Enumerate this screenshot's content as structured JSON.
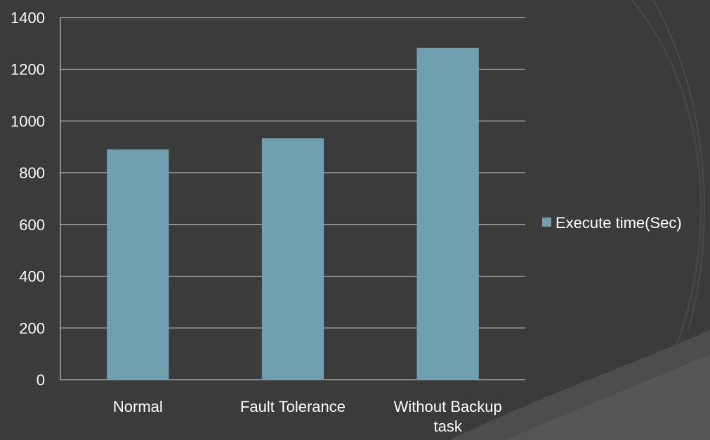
{
  "chart_data": {
    "type": "bar",
    "categories": [
      "Normal",
      "Fault Tolerance",
      "Without Backup task"
    ],
    "category_label_lines": [
      [
        "Normal"
      ],
      [
        "Fault Tolerance"
      ],
      [
        "Without Backup",
        "task"
      ]
    ],
    "series": [
      {
        "name": "Execute time(Sec)",
        "values": [
          890,
          933,
          1283
        ],
        "color": "#6fa0b0"
      }
    ],
    "ylim": [
      0,
      1400
    ],
    "yticks": [
      0,
      200,
      400,
      600,
      800,
      1000,
      1200,
      1400
    ],
    "grid": true,
    "legend_position": "right"
  },
  "colors": {
    "background": "#3b3b3b",
    "plot_background": "#3b3b3b",
    "gridline": "#d9d9d9",
    "text": "#ffffff"
  }
}
